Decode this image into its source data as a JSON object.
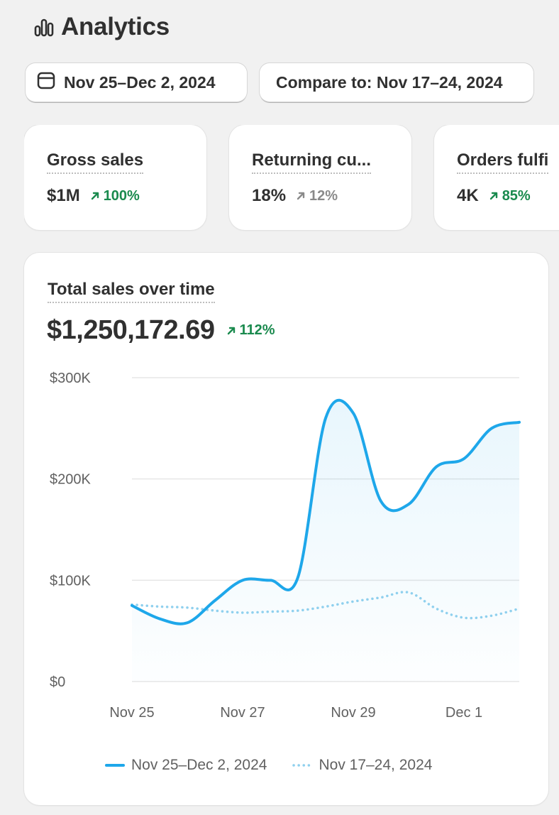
{
  "header": {
    "title": "Analytics",
    "icon": "bar-chart-icon"
  },
  "filters": {
    "date_range": "Nov 25–Dec 2, 2024",
    "date_icon": "calendar-icon",
    "compare": "Compare to: Nov 17–24, 2024"
  },
  "metrics": [
    {
      "label": "Gross sales",
      "value": "$1M",
      "delta": "100%",
      "trend": "up"
    },
    {
      "label": "Returning cu...",
      "value": "18%",
      "delta": "12%",
      "trend": "neutral"
    },
    {
      "label": "Orders fulfi",
      "value": "4K",
      "delta": "85%",
      "trend": "up"
    }
  ],
  "sales_card": {
    "title": "Total sales over time",
    "total": "$1,250,172.69",
    "delta": "112%",
    "trend": "up"
  },
  "colors": {
    "primary": "#1ea7ea",
    "comparison": "#8fd0ee",
    "positive": "#1a8a4e",
    "neutral": "#8a8a8a"
  },
  "chart_data": {
    "type": "line",
    "x": [
      0,
      0.5,
      1,
      1.5,
      2,
      2.5,
      3,
      3.5,
      4,
      4.5,
      5,
      5.5,
      6,
      6.5,
      7
    ],
    "xticks": [
      {
        "x": 0,
        "label": "Nov 25"
      },
      {
        "x": 2,
        "label": "Nov 27"
      },
      {
        "x": 4,
        "label": "Nov 29"
      },
      {
        "x": 6,
        "label": "Dec 1"
      }
    ],
    "yticks": [
      {
        "y": 0,
        "label": "$0"
      },
      {
        "y": 100000,
        "label": "$100K"
      },
      {
        "y": 200000,
        "label": "$200K"
      },
      {
        "y": 300000,
        "label": "$300K"
      }
    ],
    "ylim": [
      0,
      300000
    ],
    "xlim": [
      0,
      7
    ],
    "series": [
      {
        "name": "Nov 25–Dec 2, 2024",
        "style": "solid",
        "values": [
          75000,
          62000,
          58000,
          80000,
          100000,
          100000,
          103000,
          260000,
          265000,
          178000,
          175000,
          212000,
          220000,
          250000,
          256000
        ]
      },
      {
        "name": "Nov 17–24, 2024",
        "style": "dotted",
        "values": [
          76000,
          74000,
          73000,
          70000,
          68000,
          69000,
          70000,
          74000,
          79000,
          83000,
          88000,
          72000,
          63000,
          65000,
          72000
        ]
      }
    ],
    "grid": true,
    "legend_position": "bottom"
  }
}
